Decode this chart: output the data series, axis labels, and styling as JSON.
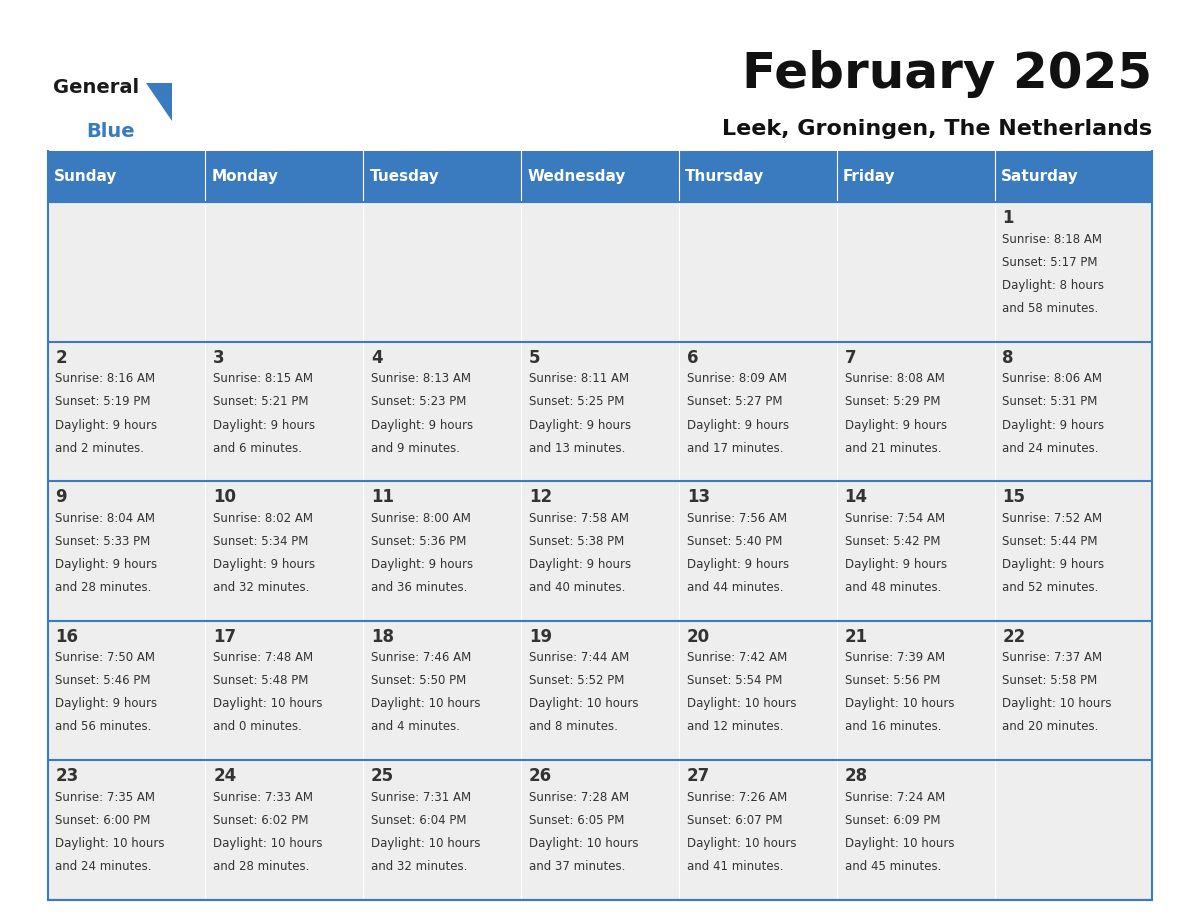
{
  "title": "February 2025",
  "subtitle": "Leek, Groningen, The Netherlands",
  "header_color": "#3a7bbf",
  "header_text_color": "#ffffff",
  "cell_bg_color": "#eeeeee",
  "border_color": "#3a7bbf",
  "day_number_color": "#333333",
  "info_text_color": "#333333",
  "days_of_week": [
    "Sunday",
    "Monday",
    "Tuesday",
    "Wednesday",
    "Thursday",
    "Friday",
    "Saturday"
  ],
  "weeks": [
    [
      {
        "day": null,
        "sunrise": null,
        "sunset": null,
        "daylight": null
      },
      {
        "day": null,
        "sunrise": null,
        "sunset": null,
        "daylight": null
      },
      {
        "day": null,
        "sunrise": null,
        "sunset": null,
        "daylight": null
      },
      {
        "day": null,
        "sunrise": null,
        "sunset": null,
        "daylight": null
      },
      {
        "day": null,
        "sunrise": null,
        "sunset": null,
        "daylight": null
      },
      {
        "day": null,
        "sunrise": null,
        "sunset": null,
        "daylight": null
      },
      {
        "day": 1,
        "sunrise": "8:18 AM",
        "sunset": "5:17 PM",
        "daylight": "8 hours\nand 58 minutes."
      }
    ],
    [
      {
        "day": 2,
        "sunrise": "8:16 AM",
        "sunset": "5:19 PM",
        "daylight": "9 hours\nand 2 minutes."
      },
      {
        "day": 3,
        "sunrise": "8:15 AM",
        "sunset": "5:21 PM",
        "daylight": "9 hours\nand 6 minutes."
      },
      {
        "day": 4,
        "sunrise": "8:13 AM",
        "sunset": "5:23 PM",
        "daylight": "9 hours\nand 9 minutes."
      },
      {
        "day": 5,
        "sunrise": "8:11 AM",
        "sunset": "5:25 PM",
        "daylight": "9 hours\nand 13 minutes."
      },
      {
        "day": 6,
        "sunrise": "8:09 AM",
        "sunset": "5:27 PM",
        "daylight": "9 hours\nand 17 minutes."
      },
      {
        "day": 7,
        "sunrise": "8:08 AM",
        "sunset": "5:29 PM",
        "daylight": "9 hours\nand 21 minutes."
      },
      {
        "day": 8,
        "sunrise": "8:06 AM",
        "sunset": "5:31 PM",
        "daylight": "9 hours\nand 24 minutes."
      }
    ],
    [
      {
        "day": 9,
        "sunrise": "8:04 AM",
        "sunset": "5:33 PM",
        "daylight": "9 hours\nand 28 minutes."
      },
      {
        "day": 10,
        "sunrise": "8:02 AM",
        "sunset": "5:34 PM",
        "daylight": "9 hours\nand 32 minutes."
      },
      {
        "day": 11,
        "sunrise": "8:00 AM",
        "sunset": "5:36 PM",
        "daylight": "9 hours\nand 36 minutes."
      },
      {
        "day": 12,
        "sunrise": "7:58 AM",
        "sunset": "5:38 PM",
        "daylight": "9 hours\nand 40 minutes."
      },
      {
        "day": 13,
        "sunrise": "7:56 AM",
        "sunset": "5:40 PM",
        "daylight": "9 hours\nand 44 minutes."
      },
      {
        "day": 14,
        "sunrise": "7:54 AM",
        "sunset": "5:42 PM",
        "daylight": "9 hours\nand 48 minutes."
      },
      {
        "day": 15,
        "sunrise": "7:52 AM",
        "sunset": "5:44 PM",
        "daylight": "9 hours\nand 52 minutes."
      }
    ],
    [
      {
        "day": 16,
        "sunrise": "7:50 AM",
        "sunset": "5:46 PM",
        "daylight": "9 hours\nand 56 minutes."
      },
      {
        "day": 17,
        "sunrise": "7:48 AM",
        "sunset": "5:48 PM",
        "daylight": "10 hours\nand 0 minutes."
      },
      {
        "day": 18,
        "sunrise": "7:46 AM",
        "sunset": "5:50 PM",
        "daylight": "10 hours\nand 4 minutes."
      },
      {
        "day": 19,
        "sunrise": "7:44 AM",
        "sunset": "5:52 PM",
        "daylight": "10 hours\nand 8 minutes."
      },
      {
        "day": 20,
        "sunrise": "7:42 AM",
        "sunset": "5:54 PM",
        "daylight": "10 hours\nand 12 minutes."
      },
      {
        "day": 21,
        "sunrise": "7:39 AM",
        "sunset": "5:56 PM",
        "daylight": "10 hours\nand 16 minutes."
      },
      {
        "day": 22,
        "sunrise": "7:37 AM",
        "sunset": "5:58 PM",
        "daylight": "10 hours\nand 20 minutes."
      }
    ],
    [
      {
        "day": 23,
        "sunrise": "7:35 AM",
        "sunset": "6:00 PM",
        "daylight": "10 hours\nand 24 minutes."
      },
      {
        "day": 24,
        "sunrise": "7:33 AM",
        "sunset": "6:02 PM",
        "daylight": "10 hours\nand 28 minutes."
      },
      {
        "day": 25,
        "sunrise": "7:31 AM",
        "sunset": "6:04 PM",
        "daylight": "10 hours\nand 32 minutes."
      },
      {
        "day": 26,
        "sunrise": "7:28 AM",
        "sunset": "6:05 PM",
        "daylight": "10 hours\nand 37 minutes."
      },
      {
        "day": 27,
        "sunrise": "7:26 AM",
        "sunset": "6:07 PM",
        "daylight": "10 hours\nand 41 minutes."
      },
      {
        "day": 28,
        "sunrise": "7:24 AM",
        "sunset": "6:09 PM",
        "daylight": "10 hours\nand 45 minutes."
      },
      {
        "day": null,
        "sunrise": null,
        "sunset": null,
        "daylight": null
      }
    ]
  ],
  "logo_triangle_color": "#3a7bbf",
  "title_fontsize": 36,
  "subtitle_fontsize": 16,
  "header_fontsize": 11,
  "day_num_fontsize": 12,
  "info_fontsize": 8.5
}
